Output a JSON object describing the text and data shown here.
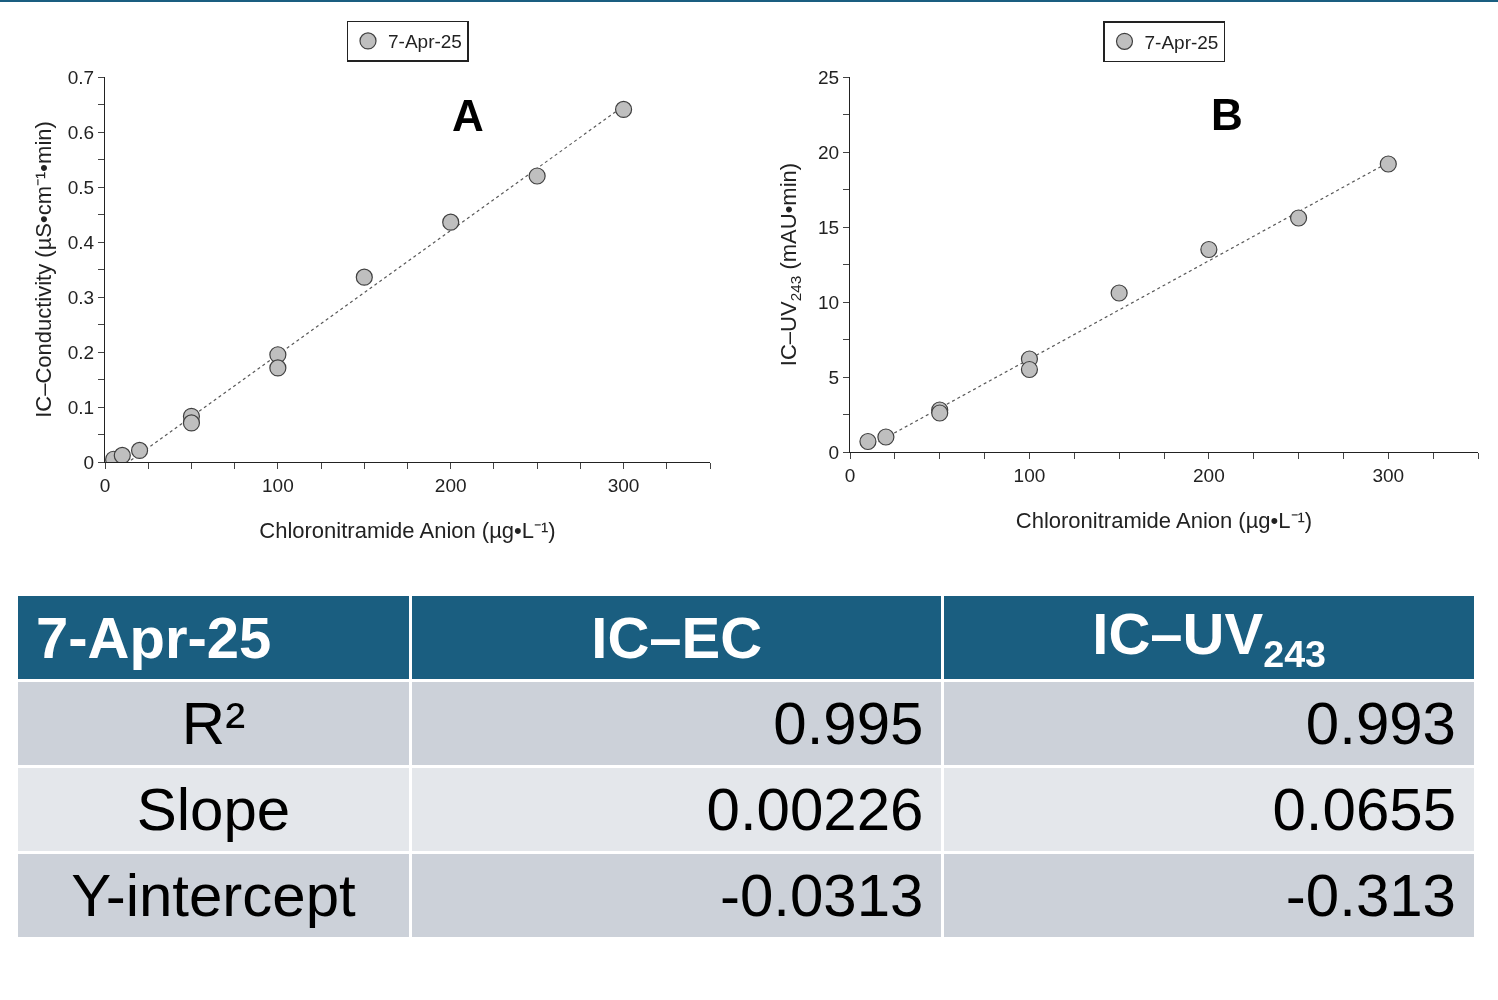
{
  "chart_data": [
    {
      "type": "scatter",
      "annotations": [
        "A"
      ],
      "xlabel": "Chloronitramide Anion (µg•L⁻¹)",
      "ylabel": "IC–Conductivity (µS•cm⁻¹•min)",
      "legend": "top",
      "marker": "circle",
      "xlim": [
        0,
        350
      ],
      "xticks": [
        0,
        {
          "value": 25,
          "label": null
        },
        {
          "value": 50,
          "label": null
        },
        {
          "value": 75,
          "label": null
        },
        100,
        {
          "value": 125,
          "label": null
        },
        {
          "value": 150,
          "label": null
        },
        {
          "value": 175,
          "label": null
        },
        200,
        {
          "value": 225,
          "label": null
        },
        {
          "value": 250,
          "label": null
        },
        {
          "value": 275,
          "label": null
        },
        300,
        {
          "value": 325,
          "label": null
        },
        {
          "value": 350,
          "label": null
        }
      ],
      "ylim": [
        0,
        0.7
      ],
      "yticks": [
        0,
        {
          "value": 0.05,
          "label": null
        },
        0.1,
        {
          "value": 0.15,
          "label": null
        },
        0.2,
        {
          "value": 0.25,
          "label": null
        },
        0.3,
        {
          "value": 0.35,
          "label": null
        },
        0.4,
        {
          "value": 0.45,
          "label": null
        },
        0.5,
        {
          "value": 0.55,
          "label": null
        },
        0.6,
        {
          "value": 0.65,
          "label": null
        },
        0.7
      ],
      "series": [
        {
          "name": "7-Apr-25",
          "color": "#bfbfbf",
          "x": [
            5,
            10,
            20,
            50,
            50,
            100,
            100,
            150,
            200,
            250,
            300
          ],
          "values": [
            0.005,
            0.012,
            0.021,
            0.083,
            0.071,
            0.195,
            0.171,
            0.336,
            0.436,
            0.52,
            0.641
          ]
        },
        {
          "type": "line",
          "color": "#595959",
          "line_style": "dotted",
          "marker": "none",
          "x": [
            15,
            300
          ],
          "values": [
            0.003,
            0.647
          ]
        }
      ]
    },
    {
      "type": "scatter",
      "annotations": [
        "B"
      ],
      "xlabel": "Chloronitramide Anion (µg•L⁻¹)",
      "ylabel": "IC–UV$_{243}$ (mAU•min)",
      "legend": "top",
      "marker": "circle",
      "xlim": [
        0,
        350
      ],
      "xticks": [
        0,
        {
          "value": 25,
          "label": null
        },
        {
          "value": 50,
          "label": null
        },
        {
          "value": 75,
          "label": null
        },
        100,
        {
          "value": 125,
          "label": null
        },
        {
          "value": 150,
          "label": null
        },
        {
          "value": 175,
          "label": null
        },
        200,
        {
          "value": 225,
          "label": null
        },
        {
          "value": 250,
          "label": null
        },
        {
          "value": 275,
          "label": null
        },
        300,
        {
          "value": 325,
          "label": null
        },
        {
          "value": 350,
          "label": null
        }
      ],
      "ylim": [
        0,
        25
      ],
      "yticks": [
        0,
        {
          "value": 2.5,
          "label": null
        },
        5,
        {
          "value": 7.5,
          "label": null
        },
        10,
        {
          "value": 12.5,
          "label": null
        },
        15,
        {
          "value": 17.5,
          "label": null
        },
        20,
        {
          "value": 22.5,
          "label": null
        },
        25
      ],
      "series": [
        {
          "name": "7-Apr-25",
          "color": "#bfbfbf",
          "x": [
            10,
            20,
            50,
            50,
            100,
            100,
            150,
            200,
            250,
            300
          ],
          "values": [
            0.7,
            1.0,
            2.8,
            2.6,
            6.2,
            5.5,
            10.6,
            13.5,
            15.6,
            19.2
          ]
        },
        {
          "type": "line",
          "color": "#595959",
          "line_style": "dotted",
          "marker": "none",
          "x": [
            10,
            300
          ],
          "values": [
            0.3,
            19.3
          ]
        }
      ]
    },
    {
      "type": "other",
      "title": "7-Apr-25",
      "categories": [
        "IC–EC",
        "IC–UV$_{243}$"
      ],
      "y_categories": [
        "R²",
        "Slope",
        "Y-intercept"
      ],
      "cell_labels": [
        [
          "0.995",
          "0.993"
        ],
        [
          "0.00226",
          "0.0655"
        ],
        [
          "-0.0313",
          "-0.313"
        ]
      ]
    }
  ]
}
